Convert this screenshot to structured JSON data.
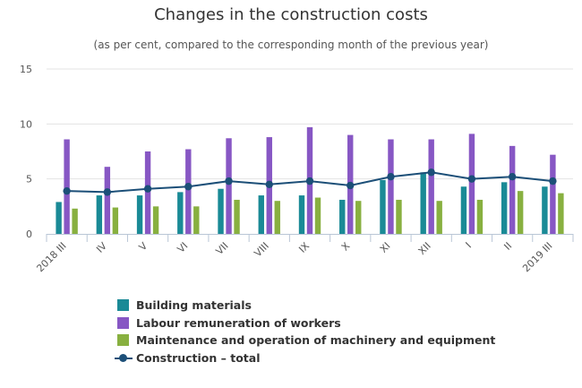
{
  "chart_data": {
    "type": "bar",
    "title": "Changes in the construction costs",
    "subtitle": "(as per cent, compared to the corresponding month of the previous year)",
    "xlabel": "",
    "ylabel": "",
    "ylim": [
      0,
      15
    ],
    "yticks": [
      0,
      5,
      10,
      15
    ],
    "grid": true,
    "legend_position": "bottom",
    "categories": [
      "2018 III",
      "IV",
      "V",
      "VI",
      "VII",
      "VIII",
      "IX",
      "X",
      "XI",
      "XII",
      "I",
      "II",
      "2019 III"
    ],
    "series": [
      {
        "name": "Building materials",
        "type": "bar",
        "color": "#1a8a96",
        "values": [
          2.9,
          3.5,
          3.5,
          3.8,
          4.1,
          3.5,
          3.5,
          3.1,
          4.9,
          5.6,
          4.3,
          4.7,
          4.3
        ]
      },
      {
        "name": "Labour remuneration of workers",
        "type": "bar",
        "color": "#8757c4",
        "values": [
          8.6,
          6.1,
          7.5,
          7.7,
          8.7,
          8.8,
          9.7,
          9.0,
          8.6,
          8.6,
          9.1,
          8.0,
          7.2
        ]
      },
      {
        "name": "Maintenance and operation of machinery and equipment",
        "type": "bar",
        "color": "#88b040",
        "values": [
          2.3,
          2.4,
          2.5,
          2.5,
          3.1,
          3.0,
          3.3,
          3.0,
          3.1,
          3.0,
          3.1,
          3.9,
          3.7
        ]
      },
      {
        "name": "Construction – total",
        "type": "line",
        "color": "#1c4f78",
        "values": [
          3.9,
          3.8,
          4.1,
          4.3,
          4.8,
          4.5,
          4.8,
          4.4,
          5.2,
          5.6,
          5.0,
          5.2,
          4.8
        ]
      }
    ]
  }
}
